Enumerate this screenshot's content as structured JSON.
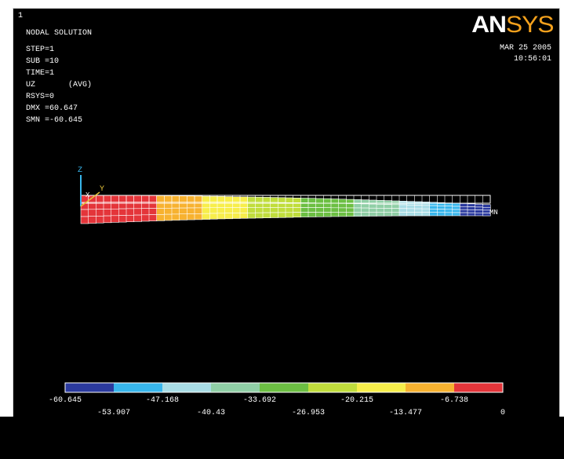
{
  "window_number": "1",
  "logo": {
    "left": "AN",
    "right": "SYS"
  },
  "date": "MAR 25 2005",
  "time": "10:56:01",
  "solution_info": [
    "NODAL SOLUTION",
    "STEP=1",
    "SUB =10",
    "TIME=1",
    "UZ       (AVG)",
    "RSYS=0",
    "DMX =60.647",
    "SMN =-60.645"
  ],
  "axes": {
    "z": "Z",
    "y": "Y",
    "x": "X"
  },
  "min_marker": "MN",
  "legend": {
    "colors": [
      "#2b3a9e",
      "#38b6ec",
      "#a9dde6",
      "#90cfa6",
      "#6cbf43",
      "#c0dd3c",
      "#f7ee4b",
      "#f7b230",
      "#e4353a"
    ],
    "labels_top": [
      "-60.645",
      "-47.168",
      "-33.692",
      "-20.215",
      "-6.738"
    ],
    "labels_bottom": [
      "-53.907",
      "-40.43",
      "-26.953",
      "-13.477",
      "0"
    ]
  }
}
